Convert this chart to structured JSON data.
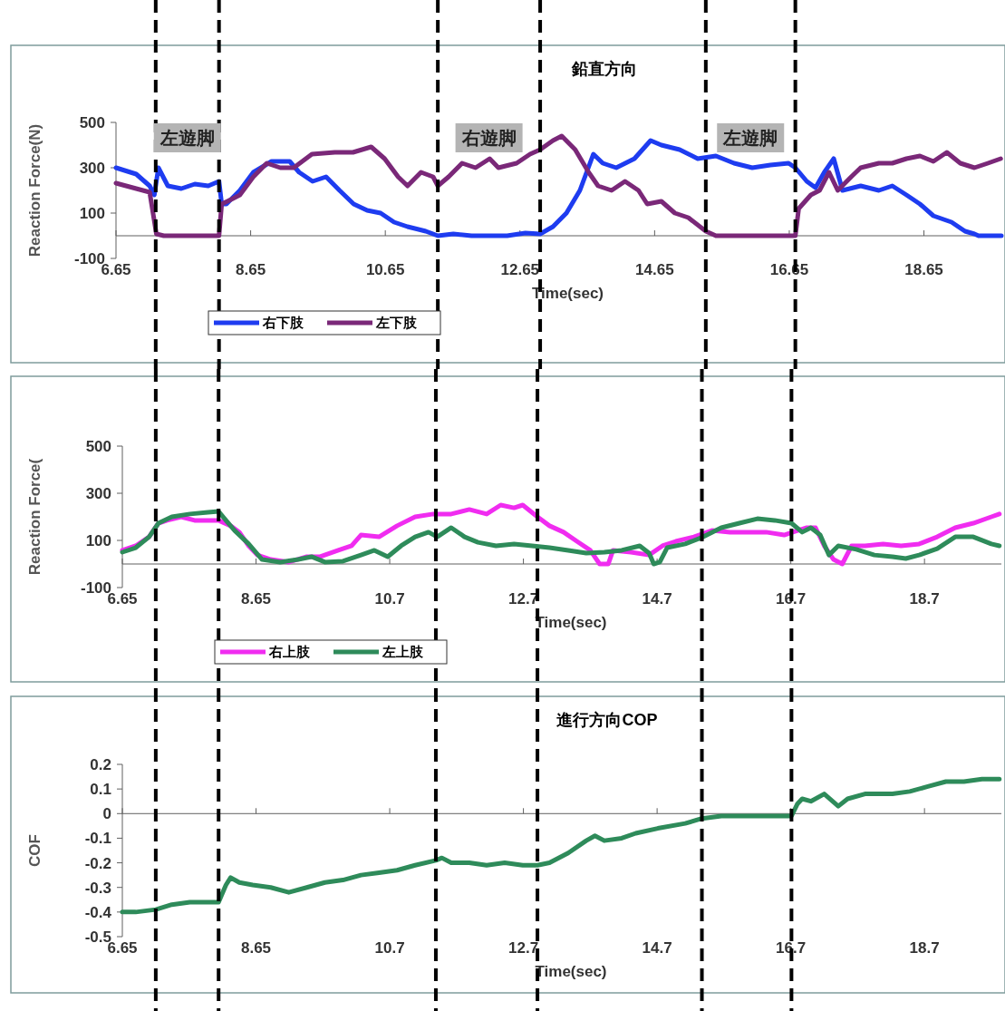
{
  "chart_data": [
    {
      "type": "line",
      "title": "鉛直方向",
      "xlabel": "Time(sec)",
      "ylabel": "Reaction Force(N)",
      "xlim": [
        6.65,
        19.8
      ],
      "xticks": [
        6.65,
        8.65,
        10.65,
        12.65,
        14.65,
        16.65,
        18.65
      ],
      "ylim": [
        -100,
        500
      ],
      "yticks": [
        500,
        300,
        100,
        -100
      ],
      "legend": "bottom",
      "series": [
        {
          "name": "右下肢",
          "color": "#1e3cf0",
          "x": [
            6.65,
            6.95,
            7.15,
            7.22,
            7.28,
            7.42,
            7.62,
            7.82,
            8.02,
            8.18,
            8.22,
            8.29,
            8.49,
            8.69,
            8.96,
            9.23,
            9.37,
            9.57,
            9.77,
            9.97,
            10.18,
            10.38,
            10.58,
            10.78,
            10.98,
            11.25,
            11.43,
            11.66,
            11.93,
            12.46,
            12.73,
            12.95,
            13.14,
            13.34,
            13.54,
            13.74,
            13.88,
            14.08,
            14.35,
            14.59,
            14.75,
            15.02,
            15.29,
            15.56,
            15.83,
            16.1,
            16.37,
            16.64,
            16.74,
            16.91,
            17.04,
            17.17,
            17.31,
            17.44,
            17.71,
            17.98,
            18.18,
            18.39,
            18.59,
            18.79,
            19.06,
            19.26,
            19.4,
            19.46,
            19.8
          ],
          "values": [
            300,
            272,
            220,
            180,
            300,
            220,
            208,
            228,
            220,
            240,
            140,
            140,
            200,
            280,
            328,
            328,
            280,
            240,
            260,
            200,
            140,
            112,
            100,
            60,
            40,
            20,
            0,
            8,
            0,
            0,
            12,
            8,
            40,
            100,
            200,
            360,
            320,
            300,
            340,
            420,
            400,
            380,
            340,
            352,
            320,
            300,
            312,
            320,
            300,
            240,
            212,
            280,
            340,
            200,
            220,
            200,
            220,
            180,
            140,
            88,
            60,
            20,
            8,
            0,
            0
          ]
        },
        {
          "name": "左下肢",
          "color": "#7a2878",
          "x": [
            6.65,
            6.95,
            7.15,
            7.25,
            7.36,
            8.18,
            8.22,
            8.36,
            8.49,
            8.69,
            8.89,
            9.09,
            9.29,
            9.56,
            9.9,
            10.17,
            10.44,
            10.64,
            10.84,
            10.98,
            11.18,
            11.36,
            11.43,
            11.59,
            11.79,
            11.99,
            12.2,
            12.33,
            12.6,
            12.8,
            12.95,
            13.14,
            13.27,
            13.47,
            13.67,
            13.81,
            14.01,
            14.21,
            14.41,
            14.54,
            14.75,
            14.95,
            15.15,
            15.41,
            15.56,
            16.74,
            16.79,
            16.97,
            17.1,
            17.24,
            17.37,
            17.57,
            17.71,
            17.98,
            18.18,
            18.39,
            18.59,
            18.79,
            18.99,
            19.19,
            19.4,
            19.6,
            19.79
          ],
          "values": [
            232,
            208,
            192,
            8,
            0,
            0,
            140,
            160,
            180,
            260,
            320,
            300,
            300,
            360,
            368,
            368,
            392,
            340,
            260,
            220,
            280,
            260,
            220,
            260,
            320,
            300,
            340,
            300,
            320,
            360,
            380,
            420,
            440,
            380,
            280,
            220,
            200,
            240,
            200,
            140,
            152,
            100,
            80,
            20,
            0,
            0,
            120,
            180,
            200,
            280,
            200,
            260,
            300,
            320,
            320,
            340,
            352,
            328,
            368,
            320,
            300,
            320,
            340
          ]
        }
      ],
      "ref_lines": [
        {
          "axis": "x",
          "value": 7.24
        },
        {
          "axis": "x",
          "value": 8.18
        },
        {
          "axis": "x",
          "value": 11.43
        },
        {
          "axis": "x",
          "value": 12.95
        },
        {
          "axis": "x",
          "value": 15.41
        },
        {
          "axis": "x",
          "value": 16.74
        }
      ],
      "annotations": [
        "左遊脚",
        "右遊脚",
        "左遊脚"
      ]
    },
    {
      "type": "line",
      "xlabel": "Time(sec)",
      "ylabel": "Reaction Force(",
      "xlim": [
        6.65,
        19.8
      ],
      "xticks": [
        6.65,
        8.65,
        {
          "value": 10.65,
          "label": "10.7"
        },
        {
          "value": 12.65,
          "label": "12.7"
        },
        {
          "value": 14.65,
          "label": "14.7"
        },
        {
          "value": 16.65,
          "label": "16.7"
        },
        {
          "value": 18.65,
          "label": "18.7"
        }
      ],
      "ylim": [
        -100,
        500
      ],
      "yticks": [
        500,
        300,
        100,
        -100
      ],
      "legend": "bottom",
      "series": [
        {
          "name": "右上肢",
          "color": "#f02cf0",
          "x": [
            6.65,
            6.85,
            7.05,
            7.19,
            7.32,
            7.53,
            7.73,
            8.09,
            8.27,
            8.4,
            8.54,
            8.67,
            8.87,
            9.14,
            9.41,
            9.61,
            9.88,
            10.08,
            10.22,
            10.49,
            10.76,
            11.03,
            11.3,
            11.57,
            11.84,
            12.1,
            12.31,
            12.51,
            12.64,
            12.86,
            13.04,
            13.25,
            13.45,
            13.65,
            13.79,
            13.92,
            13.99,
            14.26,
            14.53,
            14.73,
            14.93,
            15.2,
            15.47,
            15.74,
            16.01,
            16.28,
            16.55,
            16.68,
            16.89,
            17.02,
            17.15,
            17.29,
            17.42,
            17.56,
            17.76,
            18.03,
            18.3,
            18.57,
            18.84,
            19.11,
            19.38,
            19.65,
            19.77
          ],
          "values": [
            58,
            77,
            115,
            173,
            185,
            200,
            185,
            185,
            162,
            135,
            77,
            38,
            19,
            8,
            31,
            31,
            58,
            77,
            123,
            115,
            162,
            200,
            212,
            212,
            231,
            212,
            250,
            238,
            250,
            200,
            162,
            135,
            96,
            58,
            0,
            0,
            58,
            50,
            38,
            77,
            96,
            115,
            142,
            135,
            135,
            135,
            123,
            135,
            154,
            154,
            77,
            19,
            0,
            77,
            77,
            85,
            77,
            85,
            115,
            154,
            173,
            200,
            212
          ]
        },
        {
          "name": "左上肢",
          "color": "#2e8b5a",
          "x": [
            6.65,
            6.85,
            7.05,
            7.19,
            7.39,
            7.66,
            7.93,
            8.09,
            8.2,
            8.33,
            8.54,
            8.74,
            9.01,
            9.28,
            9.48,
            9.68,
            9.95,
            10.22,
            10.42,
            10.62,
            10.82,
            11.03,
            11.23,
            11.36,
            11.57,
            11.77,
            11.97,
            12.24,
            12.51,
            12.78,
            13.04,
            13.32,
            13.59,
            13.86,
            14.12,
            14.39,
            14.53,
            14.6,
            14.69,
            14.8,
            15.07,
            15.34,
            15.61,
            15.88,
            16.15,
            16.41,
            16.66,
            16.82,
            16.95,
            17.09,
            17.22,
            17.36,
            17.63,
            17.9,
            18.17,
            18.37,
            18.57,
            18.84,
            19.11,
            19.38,
            19.65,
            19.77
          ],
          "values": [
            50,
            69,
            115,
            173,
            200,
            212,
            219,
            223,
            185,
            142,
            85,
            19,
            8,
            19,
            31,
            8,
            12,
            38,
            58,
            31,
            77,
            115,
            135,
            115,
            154,
            115,
            92,
            77,
            85,
            77,
            69,
            58,
            46,
            50,
            58,
            77,
            46,
            0,
            8,
            69,
            85,
            115,
            154,
            173,
            192,
            185,
            173,
            135,
            154,
            123,
            38,
            77,
            62,
            38,
            31,
            23,
            38,
            65,
            115,
            115,
            85,
            77
          ]
        }
      ],
      "ref_lines": [
        {
          "axis": "x",
          "value": 7.15
        },
        {
          "axis": "x",
          "value": 8.09
        },
        {
          "axis": "x",
          "value": 11.34
        },
        {
          "axis": "x",
          "value": 12.86
        },
        {
          "axis": "x",
          "value": 15.32
        },
        {
          "axis": "x",
          "value": 16.66
        }
      ]
    },
    {
      "type": "line",
      "title": "進行方向COP",
      "xlabel": "Time(sec)",
      "ylabel": "COF",
      "xlim": [
        6.65,
        19.8
      ],
      "xticks": [
        6.65,
        8.65,
        {
          "value": 10.65,
          "label": "10.7"
        },
        {
          "value": 12.65,
          "label": "12.7"
        },
        {
          "value": 14.65,
          "label": "14.7"
        },
        {
          "value": 16.65,
          "label": "16.7"
        },
        {
          "value": 18.65,
          "label": "18.7"
        }
      ],
      "ylim": [
        -0.5,
        0.2
      ],
      "yticks": [
        0.2,
        0.1,
        0,
        -0.1,
        -0.2,
        -0.3,
        -0.4,
        -0.5
      ],
      "series": [
        {
          "color": "#2e8b5a",
          "x": [
            6.65,
            6.85,
            7.15,
            7.39,
            7.66,
            8.09,
            8.2,
            8.27,
            8.4,
            8.6,
            8.87,
            9.14,
            9.41,
            9.68,
            9.95,
            10.22,
            10.49,
            10.76,
            11.03,
            11.34,
            11.43,
            11.57,
            11.84,
            12.1,
            12.37,
            12.64,
            12.86,
            13.04,
            13.32,
            13.59,
            13.72,
            13.86,
            14.12,
            14.33,
            14.66,
            15.07,
            15.32,
            15.61,
            16.01,
            16.41,
            16.66,
            16.75,
            16.82,
            16.95,
            17.15,
            17.36,
            17.5,
            17.76,
            18.17,
            18.43,
            18.7,
            18.97,
            19.24,
            19.51,
            19.77
          ],
          "values": [
            -0.4,
            -0.4,
            -0.39,
            -0.37,
            -0.36,
            -0.36,
            -0.29,
            -0.26,
            -0.28,
            -0.29,
            -0.3,
            -0.32,
            -0.3,
            -0.28,
            -0.27,
            -0.25,
            -0.24,
            -0.23,
            -0.21,
            -0.19,
            -0.18,
            -0.2,
            -0.2,
            -0.21,
            -0.2,
            -0.21,
            -0.21,
            -0.2,
            -0.16,
            -0.11,
            -0.09,
            -0.11,
            -0.1,
            -0.08,
            -0.06,
            -0.04,
            -0.02,
            -0.01,
            -0.01,
            -0.01,
            -0.01,
            0.04,
            0.06,
            0.05,
            0.08,
            0.03,
            0.06,
            0.08,
            0.08,
            0.09,
            0.11,
            0.13,
            0.13,
            0.14,
            0.14
          ]
        }
      ],
      "ref_lines": [
        {
          "axis": "x",
          "value": 7.15
        },
        {
          "axis": "x",
          "value": 8.09
        },
        {
          "axis": "x",
          "value": 11.34
        },
        {
          "axis": "x",
          "value": 12.86
        },
        {
          "axis": "x",
          "value": 15.32
        },
        {
          "axis": "x",
          "value": 16.66
        }
      ]
    }
  ]
}
